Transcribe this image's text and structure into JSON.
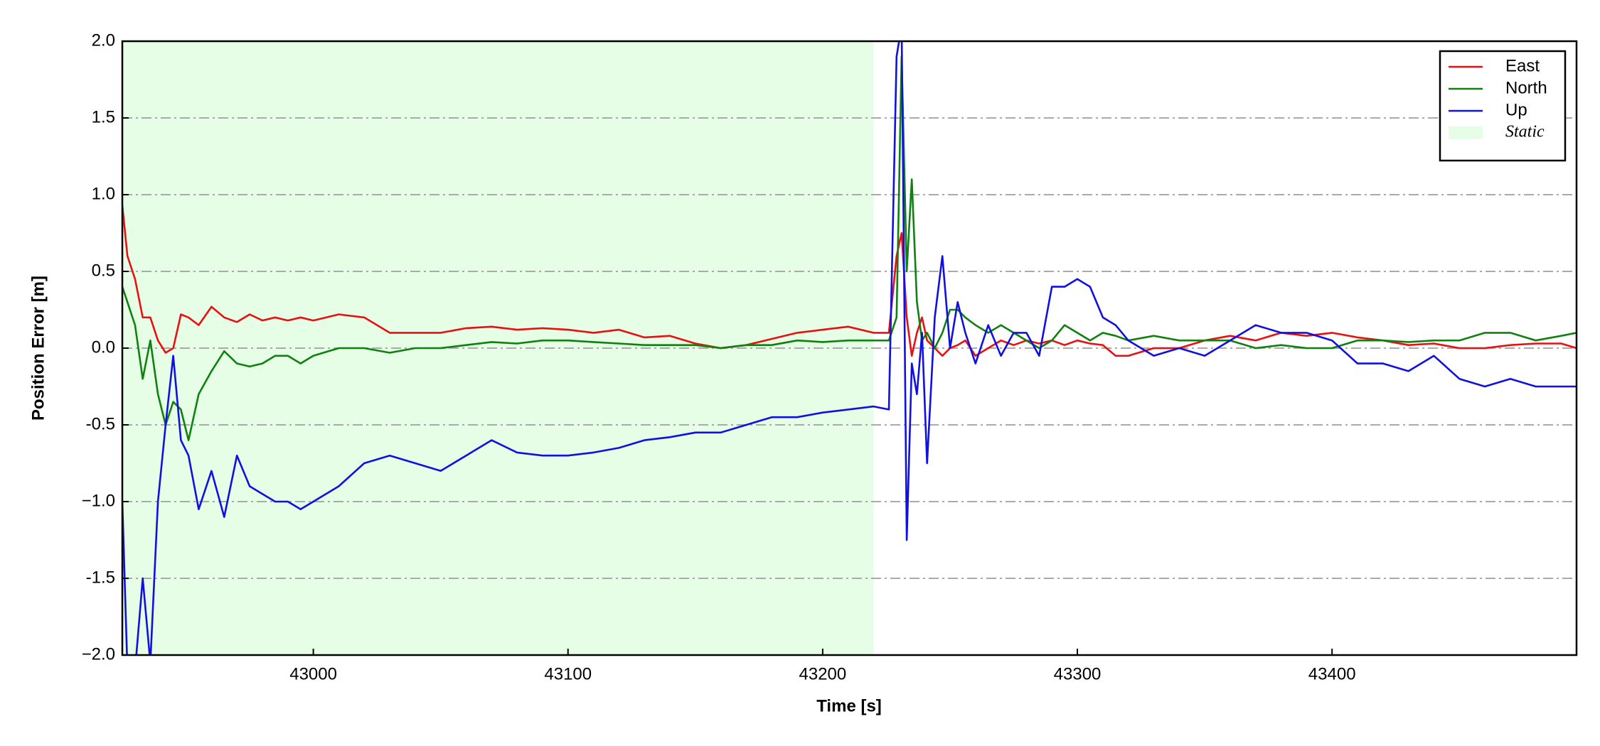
{
  "chart_data": {
    "type": "line",
    "xlabel": "Time [s]",
    "ylabel": "Position Error [m]",
    "x": [
      42925,
      42927,
      42930,
      42933,
      42936,
      42939,
      42942,
      42945,
      42948,
      42951,
      42955,
      42960,
      42965,
      42970,
      42975,
      42980,
      42985,
      42990,
      42995,
      43000,
      43010,
      43020,
      43030,
      43040,
      43050,
      43060,
      43070,
      43080,
      43090,
      43100,
      43110,
      43120,
      43130,
      43140,
      43150,
      43160,
      43170,
      43180,
      43190,
      43200,
      43210,
      43220,
      43226,
      43229,
      43231,
      43233,
      43235,
      43237,
      43239,
      43241,
      43244,
      43247,
      43250,
      43253,
      43256,
      43260,
      43265,
      43270,
      43275,
      43280,
      43285,
      43290,
      43295,
      43300,
      43305,
      43310,
      43315,
      43320,
      43330,
      43340,
      43350,
      43360,
      43370,
      43380,
      43390,
      43400,
      43410,
      43420,
      43430,
      43440,
      43450,
      43460,
      43470,
      43480,
      43490,
      43496
    ],
    "series": [
      {
        "name": "East",
        "color": "#e81010",
        "values": [
          0.93,
          0.6,
          0.45,
          0.2,
          0.2,
          0.05,
          -0.03,
          0.0,
          0.22,
          0.2,
          0.15,
          0.27,
          0.2,
          0.17,
          0.22,
          0.18,
          0.2,
          0.18,
          0.2,
          0.18,
          0.22,
          0.2,
          0.1,
          0.1,
          0.1,
          0.13,
          0.14,
          0.12,
          0.13,
          0.12,
          0.1,
          0.12,
          0.07,
          0.08,
          0.03,
          0.0,
          0.02,
          0.06,
          0.1,
          0.12,
          0.14,
          0.1,
          0.1,
          0.6,
          0.75,
          0.2,
          -0.05,
          0.1,
          0.2,
          0.05,
          0.0,
          -0.05,
          0.0,
          0.02,
          0.05,
          -0.05,
          0.0,
          0.05,
          0.02,
          0.05,
          0.03,
          0.05,
          0.02,
          0.05,
          0.03,
          0.02,
          -0.05,
          -0.05,
          0.0,
          0.0,
          0.05,
          0.08,
          0.05,
          0.1,
          0.08,
          0.1,
          0.07,
          0.05,
          0.02,
          0.03,
          0.0,
          0.0,
          0.02,
          0.03,
          0.03,
          0.0
        ]
      },
      {
        "name": "North",
        "color": "#108010",
        "values": [
          0.4,
          0.3,
          0.15,
          -0.2,
          0.05,
          -0.3,
          -0.5,
          -0.35,
          -0.4,
          -0.6,
          -0.3,
          -0.15,
          -0.02,
          -0.1,
          -0.12,
          -0.1,
          -0.05,
          -0.05,
          -0.1,
          -0.05,
          0.0,
          0.0,
          -0.03,
          0.0,
          0.0,
          0.02,
          0.04,
          0.03,
          0.05,
          0.05,
          0.04,
          0.03,
          0.02,
          0.02,
          0.02,
          0.0,
          0.02,
          0.02,
          0.05,
          0.04,
          0.05,
          0.05,
          0.05,
          0.2,
          1.9,
          0.5,
          1.1,
          0.3,
          0.05,
          0.1,
          0.0,
          0.1,
          0.25,
          0.25,
          0.2,
          0.15,
          0.1,
          0.15,
          0.1,
          0.05,
          0.0,
          0.05,
          0.15,
          0.1,
          0.05,
          0.1,
          0.08,
          0.05,
          0.08,
          0.05,
          0.05,
          0.05,
          0.0,
          0.02,
          0.0,
          0.0,
          0.05,
          0.05,
          0.04,
          0.05,
          0.05,
          0.1,
          0.1,
          0.05,
          0.08,
          0.1
        ]
      },
      {
        "name": "Up",
        "color": "#1010e0",
        "values": [
          -1.0,
          -2.1,
          -2.1,
          -1.5,
          -2.05,
          -1.0,
          -0.5,
          -0.05,
          -0.6,
          -0.7,
          -1.05,
          -0.8,
          -1.1,
          -0.7,
          -0.9,
          -0.95,
          -1.0,
          -1.0,
          -1.05,
          -1.0,
          -0.9,
          -0.75,
          -0.7,
          -0.75,
          -0.8,
          -0.7,
          -0.6,
          -0.68,
          -0.7,
          -0.7,
          -0.68,
          -0.65,
          -0.6,
          -0.58,
          -0.55,
          -0.55,
          -0.5,
          -0.45,
          -0.45,
          -0.42,
          -0.4,
          -0.38,
          -0.4,
          1.9,
          2.1,
          -1.25,
          -0.1,
          -0.3,
          0.1,
          -0.75,
          0.2,
          0.6,
          0.0,
          0.3,
          0.1,
          -0.1,
          0.15,
          -0.05,
          0.1,
          0.1,
          -0.05,
          0.4,
          0.4,
          0.45,
          0.4,
          0.2,
          0.15,
          0.05,
          -0.05,
          0.0,
          -0.05,
          0.05,
          0.15,
          0.1,
          0.1,
          0.05,
          -0.1,
          -0.1,
          -0.15,
          -0.05,
          -0.2,
          -0.25,
          -0.2,
          -0.25,
          -0.25,
          -0.25
        ]
      }
    ],
    "shaded_regions": [
      {
        "name": "Static",
        "color": "#e6fde6",
        "start": 42925,
        "end": 43220
      }
    ],
    "xlim": [
      42925,
      43496
    ],
    "ylim": [
      -2,
      2
    ],
    "xticks": [
      43000,
      43100,
      43200,
      43300,
      43400
    ],
    "yticks": [
      {
        "value": -2,
        "label": "−2.0"
      },
      -1.5,
      {
        "value": -1,
        "label": "−1.0"
      },
      -0.5,
      {
        "value": 0,
        "label": "0.0"
      },
      0.5,
      {
        "value": 1,
        "label": "1.0"
      },
      1.5,
      {
        "value": 2,
        "label": "2.0"
      }
    ],
    "grid": true,
    "legend": "upper right"
  }
}
